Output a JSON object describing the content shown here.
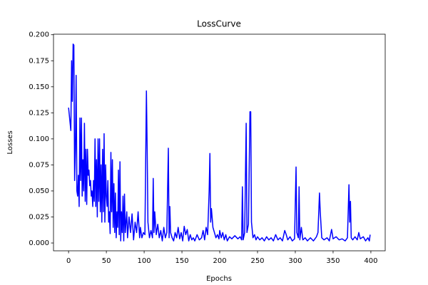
{
  "chart_data": {
    "type": "line",
    "title": "LossCurve",
    "x_label": "Epochs",
    "y_label": "Losses",
    "x": [
      0,
      3,
      4,
      5,
      6,
      7,
      8,
      9,
      10,
      11,
      12,
      13,
      14,
      15,
      16,
      17,
      18,
      19,
      20,
      21,
      22,
      23,
      24,
      25,
      26,
      27,
      28,
      29,
      30,
      31,
      32,
      33,
      34,
      35,
      36,
      37,
      38,
      39,
      40,
      41,
      42,
      43,
      44,
      45,
      46,
      47,
      48,
      49,
      50,
      51,
      52,
      53,
      54,
      55,
      56,
      57,
      58,
      59,
      60,
      61,
      62,
      63,
      64,
      65,
      66,
      67,
      68,
      69,
      70,
      71,
      72,
      73,
      74,
      75,
      77,
      78,
      80,
      82,
      84,
      86,
      88,
      90,
      92,
      94,
      95,
      97,
      99,
      101,
      103,
      104,
      105,
      107,
      109,
      111,
      112,
      113,
      114,
      116,
      118,
      120,
      122,
      124,
      126,
      128,
      130,
      132,
      133,
      134,
      135,
      137,
      139,
      141,
      143,
      145,
      147,
      149,
      151,
      153,
      155,
      157,
      159,
      161,
      163,
      165,
      167,
      170,
      173,
      176,
      178,
      180,
      182,
      184,
      186,
      187,
      188,
      189,
      191,
      193,
      195,
      197,
      199,
      200,
      202,
      204,
      206,
      208,
      210,
      213,
      216,
      220,
      224,
      227,
      229,
      230,
      231,
      233,
      235,
      236,
      238,
      240,
      241,
      242,
      244,
      246,
      248,
      250,
      253,
      256,
      259,
      262,
      265,
      268,
      271,
      274,
      277,
      280,
      283,
      286,
      288,
      290,
      293,
      296,
      299,
      301,
      302,
      304,
      305,
      306,
      308,
      310,
      313,
      316,
      320,
      324,
      328,
      330,
      332,
      333,
      335,
      338,
      342,
      345,
      348,
      350,
      354,
      358,
      362,
      366,
      369,
      371,
      372,
      373,
      374,
      376,
      379,
      382,
      384,
      386,
      390,
      393,
      396,
      398,
      399
    ],
    "series": [
      {
        "name": "Losses",
        "color": "#0000ff",
        "values": [
          0.13,
          0.108,
          0.175,
          0.136,
          0.191,
          0.19,
          0.06,
          0.09,
          0.161,
          0.05,
          0.045,
          0.065,
          0.035,
          0.12,
          0.06,
          0.12,
          0.045,
          0.08,
          0.05,
          0.115,
          0.04,
          0.09,
          0.037,
          0.09,
          0.065,
          0.07,
          0.055,
          0.06,
          0.045,
          0.05,
          0.035,
          0.06,
          0.04,
          0.1,
          0.035,
          0.08,
          0.025,
          0.1,
          0.04,
          0.1,
          0.03,
          0.075,
          0.02,
          0.09,
          0.03,
          0.105,
          0.02,
          0.075,
          0.045,
          0.035,
          0.06,
          0.02,
          0.03,
          0.009,
          0.087,
          0.03,
          0.08,
          0.015,
          0.057,
          0.01,
          0.048,
          0.005,
          0.03,
          0.015,
          0.07,
          0.008,
          0.078,
          0.002,
          0.03,
          0.01,
          0.045,
          0.002,
          0.047,
          0.01,
          0.03,
          0.005,
          0.025,
          0.01,
          0.028,
          0.003,
          0.02,
          0.01,
          0.03,
          0.005,
          0.015,
          0.005,
          0.01,
          0.008,
          0.146,
          0.09,
          0.02,
          0.005,
          0.012,
          0.005,
          0.062,
          0.01,
          0.03,
          0.008,
          0.018,
          0.005,
          0.012,
          0.002,
          0.015,
          0.005,
          0.01,
          0.091,
          0.005,
          0.035,
          0.01,
          0.005,
          0.002,
          0.01,
          0.005,
          0.015,
          0.004,
          0.01,
          0.002,
          0.016,
          0.008,
          0.013,
          0.002,
          0.008,
          0.003,
          0.005,
          0.002,
          0.008,
          0.003,
          0.005,
          0.012,
          0.003,
          0.015,
          0.008,
          0.05,
          0.086,
          0.02,
          0.033,
          0.015,
          0.01,
          0.005,
          0.008,
          0.004,
          0.012,
          0.005,
          0.01,
          0.003,
          0.008,
          0.002,
          0.006,
          0.004,
          0.007,
          0.004,
          0.006,
          0.003,
          0.054,
          0.003,
          0.01,
          0.115,
          0.01,
          0.018,
          0.126,
          0.126,
          0.02,
          0.005,
          0.008,
          0.003,
          0.006,
          0.003,
          0.005,
          0.002,
          0.006,
          0.003,
          0.005,
          0.002,
          0.008,
          0.003,
          0.005,
          0.002,
          0.012,
          0.008,
          0.003,
          0.006,
          0.002,
          0.004,
          0.073,
          0.01,
          0.005,
          0.054,
          0.003,
          0.015,
          0.003,
          0.005,
          0.002,
          0.005,
          0.002,
          0.006,
          0.01,
          0.048,
          0.03,
          0.005,
          0.003,
          0.005,
          0.002,
          0.013,
          0.004,
          0.006,
          0.003,
          0.004,
          0.002,
          0.005,
          0.056,
          0.02,
          0.04,
          0.005,
          0.003,
          0.006,
          0.003,
          0.01,
          0.004,
          0.006,
          0.002,
          0.005,
          0.002,
          0.008
        ]
      }
    ],
    "xlim": [
      -19.95,
      418.95
    ],
    "xticks": [
      0,
      50,
      100,
      150,
      200,
      250,
      300,
      350,
      400
    ],
    "ylim": [
      -0.0075,
      0.2005
    ],
    "yticks": [
      {
        "value": 0,
        "label": "0.000"
      },
      {
        "value": 0.025,
        "label": "0.025"
      },
      {
        "value": 0.05,
        "label": "0.050"
      },
      {
        "value": 0.075,
        "label": "0.075"
      },
      {
        "value": 0.1,
        "label": "0.100"
      },
      {
        "value": 0.125,
        "label": "0.125"
      },
      {
        "value": 0.15,
        "label": "0.150"
      },
      {
        "value": 0.175,
        "label": "0.175"
      },
      {
        "value": 0.2,
        "label": "0.200"
      }
    ]
  }
}
